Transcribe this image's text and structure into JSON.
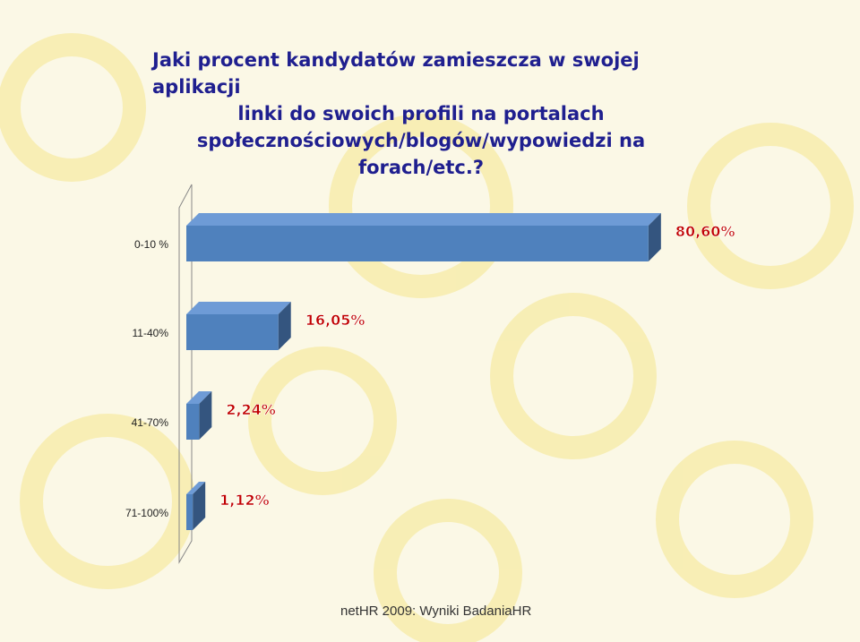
{
  "title_lines": [
    "Jaki procent kandydatów zamieszcza w swojej aplikacji",
    "linki do swoich profili na portalach",
    "społecznościowych/blogów/wypowiedzi na",
    "forach/etc.?"
  ],
  "footer": "netHR 2009: Wyniki BadaniaHR",
  "colors": {
    "bar_front": "#4f81bd",
    "bar_top": "#6e9bd6",
    "bar_side": "#34557f",
    "label": "#c00000",
    "title": "#1f1f8f"
  },
  "chart_data": {
    "type": "bar",
    "orientation": "horizontal",
    "categories": [
      "0-10 %",
      "11-40%",
      "41-70%",
      "71-100%"
    ],
    "values": [
      80.6,
      16.05,
      2.24,
      1.12
    ],
    "value_labels": [
      "80,60%",
      "16,05%",
      "2,24%",
      "1,12%"
    ],
    "xlim": [
      0,
      100
    ],
    "title": "Jaki procent kandydatów zamieszcza w swojej aplikacji linki do swoich profili na portalach społecznościowych/blogów/wypowiedzi na forach/etc.?",
    "grid": false,
    "legend": "none"
  }
}
